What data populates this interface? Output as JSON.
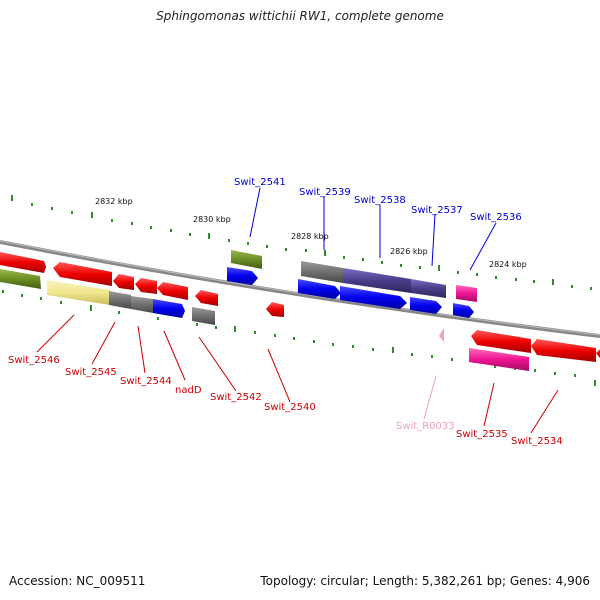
{
  "title": "Sphingomonas wittichii RW1, complete genome",
  "footer": {
    "accession": "Accession: NC_009511",
    "stats": "Topology: circular; Length: 5,382,261 bp; Genes: 4,906"
  },
  "kbp_labels": [
    "2832 kbp",
    "2830 kbp",
    "2828 kbp",
    "2826 kbp",
    "2824 kbp"
  ],
  "top_labels": [
    "Swit_2541",
    "Swit_2539",
    "Swit_2538",
    "Swit_2537",
    "Swit_2536"
  ],
  "bottom_labels": [
    "Swit_2546",
    "Swit_2545",
    "Swit_2544",
    "nadD",
    "Swit_2542",
    "Swit_2540",
    "Swit_R0033",
    "Swit_2535",
    "Swit_2534"
  ],
  "colors": {
    "red": "#ee0000",
    "olive": "#6b8e23",
    "yellow": "#f0e68c",
    "gray": "#707070",
    "blue": "#0000ee",
    "slate": "#483d8b",
    "pink": "#ee1493"
  }
}
